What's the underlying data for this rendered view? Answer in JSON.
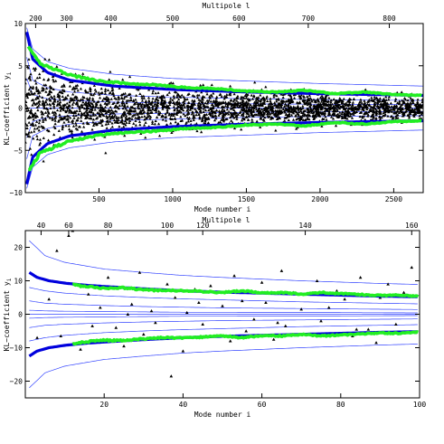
{
  "chart_data": [
    {
      "type": "scatter",
      "xlabel": "Mode number i",
      "ylabel": "KL−coefficient y",
      "ylabel_sub": "i",
      "top_axis_label": "Multipole l",
      "xlim": [
        0,
        2700
      ],
      "ylim": [
        -10,
        10
      ],
      "x_ticks": [
        "500",
        "1000",
        "1500",
        "2000",
        "2500"
      ],
      "y_ticks": [
        "−10",
        "−5",
        "0",
        "5",
        "10"
      ],
      "top_ticks": [
        "200",
        "300",
        "400",
        "500",
        "600",
        "700",
        "800"
      ],
      "top_tick_positions": [
        70,
        280,
        580,
        1000,
        1450,
        1920,
        2470
      ],
      "colors": {
        "points": "#000000",
        "theory": "#0000dd",
        "measured": "#22ee22",
        "contours": "#3344ff"
      },
      "series": [
        {
          "kind": "points",
          "n_points": 2700,
          "scatter_sd": [
            [
              0,
              4.2
            ],
            [
              300,
              3.0
            ],
            [
              800,
              2.1
            ],
            [
              1500,
              1.6
            ],
            [
              2700,
              1.2
            ]
          ]
        },
        {
          "kind": "theory",
          "x": [
            10,
            50,
            150,
            300,
            600,
            1000,
            1500,
            2000,
            2700
          ],
          "values": [
            9.0,
            5.8,
            4.2,
            3.3,
            2.6,
            2.2,
            1.9,
            1.7,
            1.5
          ]
        },
        {
          "kind": "measured",
          "x": [
            20,
            100,
            300,
            500,
            700,
            900,
            1100,
            1300,
            1500,
            1700,
            1900,
            2100,
            2300,
            2500,
            2700
          ],
          "values": [
            7.5,
            5.3,
            3.9,
            3.2,
            2.9,
            2.7,
            2.4,
            2.3,
            2.0,
            1.9,
            2.1,
            1.7,
            1.9,
            1.6,
            1.5
          ]
        },
        {
          "kind": "contours",
          "x": [
            10,
            50,
            150,
            300,
            600,
            1000,
            1500,
            2000,
            2700
          ],
          "levels": [
            [
              9.5,
              7.0,
              5.5,
              4.7,
              4.0,
              3.5,
              3.2,
              2.9,
              2.6
            ],
            [
              6.0,
              3.3,
              2.4,
              1.9,
              1.5,
              1.3,
              1.1,
              1.0,
              0.9
            ],
            [
              3.5,
              1.6,
              1.1,
              0.9,
              0.7,
              0.6,
              0.5,
              0.45,
              0.4
            ]
          ]
        }
      ]
    },
    {
      "type": "scatter",
      "xlabel": "Mode number i",
      "ylabel": "KL−coefficient y",
      "ylabel_sub": "i",
      "top_axis_label": "Multipole l",
      "xlim": [
        0,
        100
      ],
      "ylim": [
        -25,
        25
      ],
      "x_ticks": [
        "20",
        "40",
        "60",
        "80",
        "100"
      ],
      "y_ticks": [
        "−20",
        "−10",
        "0",
        "10",
        "20"
      ],
      "top_ticks": [
        "40",
        "60",
        "80",
        "100",
        "120",
        "140",
        "160"
      ],
      "top_tick_positions": [
        4,
        11,
        21,
        36,
        45,
        71,
        98
      ],
      "colors": {
        "points": "#000000",
        "theory": "#0000dd",
        "measured": "#22ee22",
        "contours": "#3344ff"
      },
      "series": [
        {
          "kind": "points",
          "x": [
            3,
            8,
            11,
            12,
            14,
            16,
            17,
            19,
            21,
            23,
            25,
            27,
            29,
            30,
            32,
            33,
            36,
            37,
            38,
            40,
            41,
            43,
            45,
            47,
            49,
            50,
            52,
            53,
            55,
            56,
            58,
            60,
            61,
            63,
            65,
            66,
            68,
            70,
            72,
            74,
            75,
            77,
            79,
            81,
            83,
            85,
            87,
            89,
            90,
            92,
            94,
            96,
            98,
            99,
            6,
            9,
            26,
            44,
            64,
            84
          ],
          "values": [
            -7.0,
            19.0,
            23.5,
            25.0,
            -10.5,
            6.0,
            -3.5,
            2.0,
            11.0,
            -4.0,
            -9.5,
            3.0,
            12.5,
            -6.0,
            1.0,
            -2.5,
            9.0,
            -18.5,
            5.0,
            -11.0,
            0.5,
            7.5,
            -3.0,
            8.5,
            -6.5,
            2.5,
            -8.0,
            11.5,
            4.0,
            -5.0,
            -1.5,
            9.5,
            3.5,
            -7.5,
            13.0,
            -3.5,
            6.5,
            1.5,
            -6.0,
            10.0,
            -2.0,
            2.0,
            7.0,
            4.5,
            -6.5,
            11.0,
            -4.5,
            -8.5,
            5.0,
            9.0,
            -3.0,
            6.5,
            14.0,
            -5.5,
            4.5,
            -6.5,
            0.0,
            3.5,
            -2.5,
            -4.5
          ]
        },
        {
          "kind": "theory",
          "x": [
            1,
            3,
            6,
            10,
            15,
            20,
            30,
            40,
            50,
            60,
            70,
            80,
            90,
            100
          ],
          "values": [
            12.5,
            11.0,
            10.0,
            9.3,
            8.7,
            8.3,
            7.6,
            7.0,
            6.6,
            6.3,
            6.0,
            5.7,
            5.4,
            5.2
          ]
        },
        {
          "kind": "measured",
          "x": [
            12,
            15,
            20,
            25,
            30,
            35,
            40,
            45,
            50,
            55,
            60,
            65,
            70,
            75,
            80,
            85,
            90,
            95,
            100
          ],
          "values": [
            8.9,
            8.3,
            7.8,
            7.9,
            7.3,
            7.0,
            7.1,
            6.8,
            6.5,
            7.0,
            6.4,
            6.5,
            6.0,
            6.5,
            6.2,
            5.9,
            5.6,
            5.7,
            5.3
          ]
        },
        {
          "kind": "contours",
          "x": [
            1,
            5,
            10,
            20,
            30,
            40,
            50,
            60,
            70,
            80,
            90,
            100
          ],
          "levels": [
            [
              22.0,
              17.5,
              15.5,
              13.5,
              12.5,
              11.6,
              11.0,
              10.5,
              10.0,
              9.6,
              9.2,
              8.9
            ],
            [
              8.0,
              7.0,
              6.3,
              5.5,
              5.0,
              4.6,
              4.3,
              4.0,
              3.7,
              3.5,
              3.3,
              3.1
            ],
            [
              4.0,
              3.3,
              3.0,
              2.6,
              2.3,
              2.1,
              1.9,
              1.8,
              1.7,
              1.6,
              1.5,
              1.4
            ],
            [
              1.2,
              1.0,
              0.9,
              0.8,
              0.7,
              0.6,
              0.6,
              0.55,
              0.5,
              0.5,
              0.45,
              0.4
            ]
          ]
        }
      ]
    }
  ]
}
